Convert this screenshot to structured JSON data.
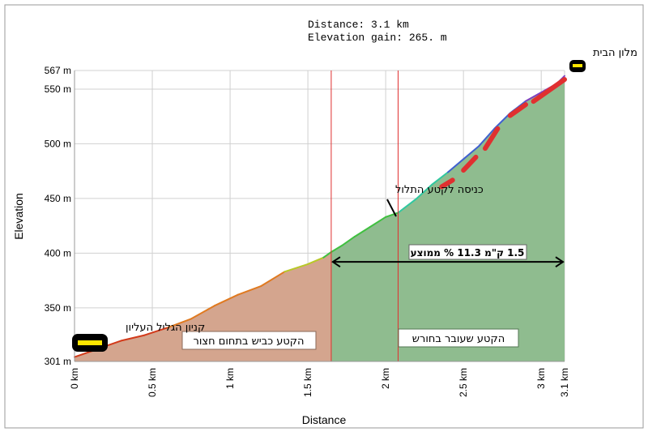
{
  "summary": {
    "distance_label": "Distance: 3.1    km",
    "gain_label": "Elevation gain: 265.   m"
  },
  "annotations": {
    "start_place": "קניון הגליל העליון",
    "end_place": "מלון הבית",
    "climb_entry": "כניסה לקטע התלול",
    "climb_stats": "1.5 ק\"מ  11.3 %  ממוצע",
    "paved_section": "הקטע  כביש בתחום חצור",
    "field_section": "הקטע שעובר בחורש"
  },
  "colors": {
    "paved_fill": "#d4a58e",
    "field_fill": "#8fbc8f",
    "marker_line": "#e03030",
    "steep_highlight": "#e03030",
    "arrow": "#000000",
    "house_icon_fill": "#000000",
    "house_icon_stripe": "#ffe600"
  },
  "chart_data": {
    "type": "area",
    "xlabel": "Distance",
    "ylabel": "Elevation",
    "xlim": [
      0,
      3.15
    ],
    "ylim": [
      301,
      567
    ],
    "x_ticks": [
      {
        "value": 0,
        "label": "0 km"
      },
      {
        "value": 0.5,
        "label": "0.5 km"
      },
      {
        "value": 1,
        "label": "1 km"
      },
      {
        "value": 1.5,
        "label": "1.5 km"
      },
      {
        "value": 2,
        "label": "2 km"
      },
      {
        "value": 2.5,
        "label": "2.5 km"
      },
      {
        "value": 3,
        "label": "3 km"
      },
      {
        "value": 3.15,
        "label": "3.1   km"
      }
    ],
    "y_ticks": [
      {
        "value": 301,
        "label": "301 m"
      },
      {
        "value": 350,
        "label": "350 m"
      },
      {
        "value": 400,
        "label": "400 m"
      },
      {
        "value": 450,
        "label": "450 m"
      },
      {
        "value": 500,
        "label": "500 m"
      },
      {
        "value": 550,
        "label": "550 m"
      },
      {
        "value": 567,
        "label": "567  m"
      }
    ],
    "x": [
      0,
      0.1,
      0.15,
      0.2,
      0.3,
      0.45,
      0.6,
      0.75,
      0.9,
      1.05,
      1.2,
      1.35,
      1.5,
      1.6,
      1.65,
      1.72,
      1.8,
      1.9,
      2.0,
      2.08,
      2.2,
      2.3,
      2.4,
      2.5,
      2.6,
      2.7,
      2.8,
      2.9,
      3.0,
      3.1,
      3.15
    ],
    "elevation": [
      305,
      310,
      312,
      315,
      320,
      325,
      332,
      340,
      352,
      362,
      370,
      383,
      390,
      396,
      401,
      407,
      415,
      424,
      433,
      437,
      450,
      463,
      474,
      486,
      498,
      514,
      528,
      539,
      547,
      555,
      562
    ],
    "section_markers_km": [
      1.65,
      2.08
    ],
    "climb_arrow_km": [
      1.65,
      3.15
    ],
    "climb_arrow_elevation": 392,
    "steep_segments": [
      {
        "x": [
          2.36,
          2.43
        ],
        "elevation": [
          463,
          469
        ]
      },
      {
        "x": [
          2.5,
          2.58
        ],
        "elevation": [
          478,
          490
        ]
      },
      {
        "x": [
          2.64,
          2.72
        ],
        "elevation": [
          498,
          516
        ]
      },
      {
        "x": [
          2.8,
          2.9
        ],
        "elevation": [
          528,
          538
        ]
      },
      {
        "x": [
          2.95,
          3.15
        ],
        "elevation": [
          541,
          561
        ]
      }
    ]
  }
}
